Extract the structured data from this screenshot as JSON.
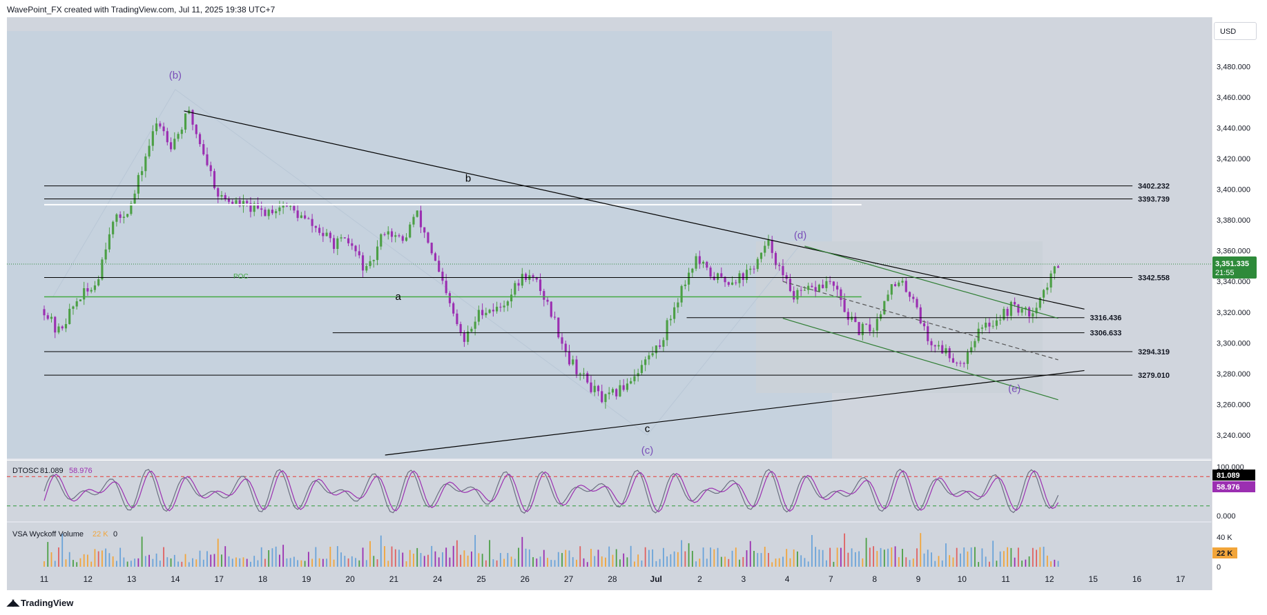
{
  "header": {
    "text": "WavePoint_FX created with TradingView.com, Jul 11, 2025 19:38 UTC+7"
  },
  "footer": {
    "brand": "TradingView",
    "logo_icon": "tradingview-logo-icon"
  },
  "currency": {
    "label": "USD"
  },
  "colors": {
    "chart_bg": "#d0d5dd",
    "shade": "#c3cfdb",
    "bull": "#4c9f45",
    "bear": "#9b2fb1",
    "accent_green": "#2e8a3a",
    "wave_label": "#7a4fb8",
    "poc_green": "#43a843",
    "current_price_bg": "#2e8a3a",
    "dtosc_line1": "#6a6f80",
    "dtosc_line2": "#9b2fb1",
    "dtosc_upper": "#e53935",
    "dtosc_lower": "#2e9a3a",
    "vol_orange": "#f2a53a",
    "vol_blue": "#6aa3d9",
    "vol_red": "#e06060"
  },
  "chart_data": {
    "type": "candlestick",
    "symbol_currency": "USD",
    "y_range": [
      3227,
      3499
    ],
    "y_ticks": [
      "3,480.000",
      "3,460.000",
      "3,440.000",
      "3,420.000",
      "3,400.000",
      "3,380.000",
      "3,360.000",
      "3,340.000",
      "3,320.000",
      "3,300.000",
      "3,280.000",
      "3,260.000",
      "3,240.000"
    ],
    "y_tick_values": [
      3480,
      3460,
      3440,
      3420,
      3400,
      3380,
      3360,
      3340,
      3320,
      3300,
      3280,
      3260,
      3240
    ],
    "x_labels": [
      "11",
      "12",
      "13",
      "14",
      "17",
      "18",
      "19",
      "20",
      "21",
      "24",
      "25",
      "26",
      "27",
      "28",
      "Jul",
      "2",
      "3",
      "4",
      "7",
      "8",
      "9",
      "10",
      "11",
      "12",
      "15",
      "16",
      "17"
    ],
    "x_label_index": [
      0,
      1,
      2,
      3,
      4,
      5,
      6,
      7,
      8,
      9,
      10,
      11,
      12,
      13,
      14,
      15,
      16,
      17,
      18,
      19,
      20,
      21,
      22,
      23,
      24,
      25,
      26
    ],
    "price_path": [
      [
        0,
        3322
      ],
      [
        0.3,
        3306
      ],
      [
        0.8,
        3330
      ],
      [
        1.0,
        3333
      ],
      [
        1.2,
        3340
      ],
      [
        1.5,
        3375
      ],
      [
        2.0,
        3390
      ],
      [
        2.3,
        3420
      ],
      [
        2.6,
        3445
      ],
      [
        2.9,
        3430
      ],
      [
        3.1,
        3438
      ],
      [
        3.3,
        3450
      ],
      [
        3.6,
        3428
      ],
      [
        4.0,
        3395
      ],
      [
        4.5,
        3390
      ],
      [
        5.0,
        3385
      ],
      [
        5.5,
        3390
      ],
      [
        6.2,
        3375
      ],
      [
        6.6,
        3365
      ],
      [
        7.0,
        3365
      ],
      [
        7.4,
        3345
      ],
      [
        7.8,
        3375
      ],
      [
        8.2,
        3365
      ],
      [
        8.5,
        3385
      ],
      [
        8.8,
        3365
      ],
      [
        9.2,
        3330
      ],
      [
        9.6,
        3300
      ],
      [
        10.0,
        3322
      ],
      [
        10.4,
        3322
      ],
      [
        10.7,
        3333
      ],
      [
        11.0,
        3345
      ],
      [
        11.3,
        3338
      ],
      [
        11.6,
        3320
      ],
      [
        12.0,
        3290
      ],
      [
        12.4,
        3275
      ],
      [
        12.8,
        3262
      ],
      [
        13.2,
        3270
      ],
      [
        13.6,
        3283
      ],
      [
        14.1,
        3300
      ],
      [
        14.5,
        3330
      ],
      [
        14.9,
        3355
      ],
      [
        15.2,
        3345
      ],
      [
        15.6,
        3340
      ],
      [
        16.1,
        3345
      ],
      [
        16.4,
        3357
      ],
      [
        16.6,
        3365
      ],
      [
        16.9,
        3342
      ],
      [
        17.2,
        3330
      ],
      [
        17.6,
        3335
      ],
      [
        18.0,
        3340
      ],
      [
        18.3,
        3322
      ],
      [
        18.6,
        3308
      ],
      [
        19.0,
        3310
      ],
      [
        19.3,
        3335
      ],
      [
        19.6,
        3338
      ],
      [
        19.9,
        3330
      ],
      [
        20.2,
        3302
      ],
      [
        20.6,
        3295
      ],
      [
        21.0,
        3286
      ],
      [
        21.3,
        3305
      ],
      [
        21.6,
        3312
      ],
      [
        21.9,
        3318
      ],
      [
        22.2,
        3325
      ],
      [
        22.5,
        3318
      ],
      [
        22.8,
        3330
      ],
      [
        23.0,
        3340
      ],
      [
        23.2,
        3352
      ]
    ],
    "price_volatility": 5,
    "candle_count": 280,
    "current_price": {
      "value": "3,351.335",
      "countdown": "21:55",
      "level": 3351.335
    },
    "levels": [
      {
        "label": "3402.232",
        "value": 3402.232,
        "from_day": 0,
        "to_day": 24.9
      },
      {
        "label": "3393.739",
        "value": 3393.739,
        "from_day": 0,
        "to_day": 24.9
      },
      {
        "label": "3342.558",
        "value": 3342.558,
        "from_day": 0,
        "to_day": 24.9
      },
      {
        "label": "3316.436",
        "value": 3316.436,
        "from_day": 14.7,
        "to_day": 23.8
      },
      {
        "label": "3306.633",
        "value": 3306.633,
        "from_day": 6.6,
        "to_day": 23.8
      },
      {
        "label": "3294.319",
        "value": 3294.319,
        "from_day": 0,
        "to_day": 24.9
      },
      {
        "label": "3279.010",
        "value": 3279.01,
        "from_day": 0,
        "to_day": 24.9
      }
    ],
    "white_level": {
      "value": 3390,
      "from_day": 0,
      "to_day": 18.7
    },
    "poc": {
      "label": "POC",
      "value": 3330,
      "from_day": 0,
      "to_day": 18.7,
      "label_day": 4.5,
      "label_value": 3342
    },
    "trendlines": [
      {
        "from": [
          3.2,
          3451
        ],
        "to": [
          23.8,
          3322
        ],
        "color": "#000000"
      },
      {
        "from": [
          7.8,
          3227
        ],
        "to": [
          23.8,
          3282
        ],
        "color": "#000000"
      },
      {
        "from": [
          17.4,
          3363
        ],
        "to": [
          23.2,
          3316
        ],
        "color": "#2e7d32"
      },
      {
        "from": [
          16.9,
          3316
        ],
        "to": [
          23.2,
          3263
        ],
        "color": "#2e7d32"
      },
      {
        "from": [
          16.9,
          3340
        ],
        "to": [
          23.2,
          3289
        ],
        "color": "#555555",
        "dashed": true
      }
    ],
    "wave_labels": [
      {
        "text": "(b)",
        "day": 3.0,
        "value": 3472,
        "color": "#7a4fb8"
      },
      {
        "text": "b",
        "day": 9.7,
        "value": 3405,
        "color": "#000000"
      },
      {
        "text": "a",
        "day": 8.1,
        "value": 3328,
        "color": "#000000"
      },
      {
        "text": "c",
        "day": 13.8,
        "value": 3242,
        "color": "#000000"
      },
      {
        "text": "(c)",
        "day": 13.8,
        "value": 3228,
        "color": "#7a4fb8"
      },
      {
        "text": "(d)",
        "day": 17.3,
        "value": 3368,
        "color": "#7a4fb8"
      },
      {
        "text": "(e)",
        "day": 22.2,
        "value": 3268,
        "color": "#7a4fb8"
      }
    ],
    "dtosc": {
      "label": "DTOSC",
      "value1": "81.089",
      "value2": "58.976",
      "range": [
        0,
        100
      ],
      "upper_band": 80,
      "lower_band": 20,
      "ticks": [
        "100.000",
        "0.000"
      ],
      "tick_values": [
        100,
        0
      ]
    },
    "volume": {
      "label": "VSA Wyckoff Volume",
      "value": "22 K",
      "zero": "0",
      "ticks": [
        "40 K",
        "0"
      ],
      "tick_values": [
        40,
        0
      ],
      "max": 50
    }
  }
}
